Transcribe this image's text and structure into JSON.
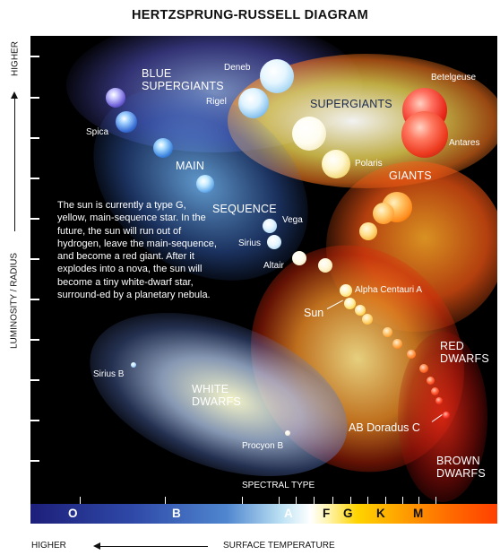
{
  "title": "HERTZSPRUNG-RUSSELL DIAGRAM",
  "y_axis": {
    "label": "LUMINOSITY / RADIUS",
    "direction": "HIGHER"
  },
  "x_axis": {
    "label": "SURFACE TEMPERATURE",
    "direction": "HIGHER",
    "spectral_title": "SPECTRAL TYPE"
  },
  "spectral_classes": [
    "O",
    "B",
    "A",
    "F",
    "G",
    "K",
    "M"
  ],
  "regions": {
    "blue_supergiants": "BLUE\nSUPERGIANTS",
    "main": "MAIN",
    "sequence": "SEQUENCE",
    "supergiants": "SUPERGIANTS",
    "giants": "GIANTS",
    "red_dwarfs": "RED\nDWARFS",
    "white_dwarfs": "WHITE\nDWARFS",
    "brown_dwarfs": "BROWN\nDWARFS"
  },
  "stars": {
    "deneb": "Deneb",
    "rigel": "Rigel",
    "spica": "Spica",
    "betelgeuse": "Betelgeuse",
    "antares": "Antares",
    "polaris": "Polaris",
    "vega": "Vega",
    "sirius": "Sirius",
    "altair": "Altair",
    "alpha_centauri_a": "Alpha Centauri A",
    "sun": "Sun",
    "sirius_b": "Sirius B",
    "procyon_b": "Procyon B",
    "ab_doradus_c": "AB Doradus C"
  },
  "note": "The sun is currently a type G, yellow, main-sequence star. In the future, the sun will run out of hydrogen, leave the main-sequence, and become a red giant. After it explodes into a nova, the sun will become a tiny white-dwarf star, surround-ed by a planetary nebula.",
  "colors": {
    "background": "#000000",
    "blue_star": "#3a6fd6",
    "white_star": "#ffffff",
    "yellow_star": "#ffd23a",
    "orange_star": "#ff8a1a",
    "red_star": "#e8281a"
  }
}
